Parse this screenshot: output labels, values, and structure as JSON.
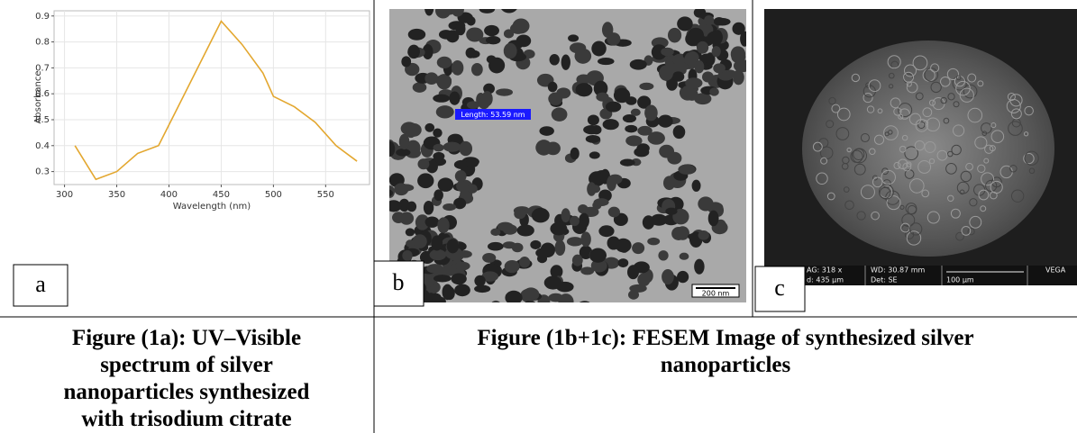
{
  "chart_data": {
    "type": "line",
    "x_label": "Wavelength (nm)",
    "y_label": "Absorbance",
    "x": [
      310,
      330,
      350,
      370,
      390,
      450,
      470,
      490,
      500,
      520,
      540,
      560,
      580
    ],
    "series": [
      {
        "color": "#e3a72f",
        "values": [
          0.4,
          0.27,
          0.3,
          0.37,
          0.4,
          0.88,
          0.79,
          0.68,
          0.59,
          0.55,
          0.49,
          0.4,
          0.34
        ]
      }
    ],
    "xlim": [
      290,
      592
    ],
    "ylim": [
      0.25,
      0.92
    ],
    "xticks": [
      300,
      350,
      400,
      450,
      500,
      550
    ],
    "yticks": [
      0.3,
      0.4,
      0.5,
      0.6,
      0.7,
      0.8,
      0.9
    ],
    "grid": true
  },
  "panels": {
    "a": "a",
    "b": "b",
    "c": "c"
  },
  "tem": {
    "measure": "Length: 53.59 nm",
    "scale_bar": "200 nm"
  },
  "sem": {
    "mag": "AG: 318 x",
    "hfw": "d: 435 µm",
    "wd": "WD: 30.87 mm",
    "det": "Det: SE",
    "scale": "100 µm",
    "brand": "VEGA"
  },
  "captions": {
    "left": [
      "Figure (1a): UV–Visible",
      "spectrum of silver",
      "nanoparticles synthesized",
      "with trisodium citrate"
    ],
    "right": [
      "Figure (1b+1c):  FESEM Image of synthesized silver",
      "nanoparticles"
    ]
  }
}
